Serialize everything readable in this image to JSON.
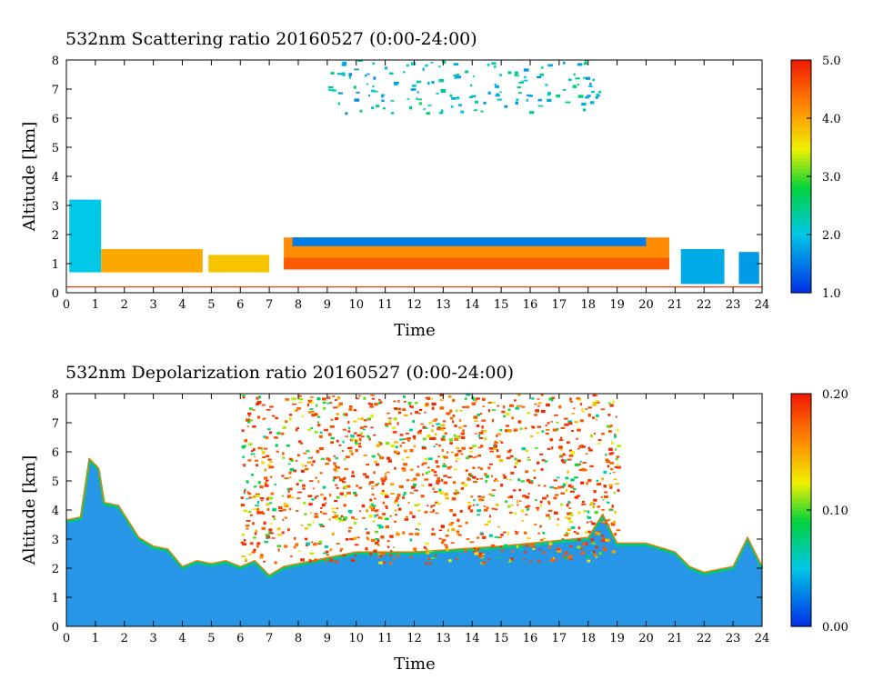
{
  "chart_data": [
    {
      "type": "heatmap",
      "title": "532nm Scattering ratio  20160527 (0:00-24:00)",
      "xlabel": "Time",
      "ylabel": "Altitude [km]",
      "xlim": [
        0,
        24
      ],
      "ylim": [
        0,
        8
      ],
      "x_ticks": [
        "0",
        "1",
        "2",
        "3",
        "4",
        "5",
        "6",
        "7",
        "8",
        "9",
        "10",
        "11",
        "12",
        "13",
        "14",
        "15",
        "16",
        "17",
        "18",
        "19",
        "20",
        "21",
        "22",
        "23",
        "24"
      ],
      "y_ticks": [
        "0",
        "1",
        "2",
        "3",
        "4",
        "5",
        "6",
        "7",
        "8"
      ],
      "colorbar": {
        "min": 1.0,
        "max": 5.0,
        "ticks": [
          "1.0",
          "2.0",
          "3.0",
          "4.0",
          "5.0"
        ]
      },
      "layers": [
        {
          "t0": 0.1,
          "t1": 1.2,
          "bottom": 0.7,
          "top": 3.2,
          "value": 2.0
        },
        {
          "t0": 1.2,
          "t1": 4.7,
          "bottom": 0.7,
          "top": 1.5,
          "value": 4.0
        },
        {
          "t0": 4.9,
          "t1": 7.0,
          "bottom": 0.7,
          "top": 1.3,
          "value": 3.8
        },
        {
          "t0": 7.5,
          "t1": 20.8,
          "bottom": 0.8,
          "top": 1.9,
          "value": 4.2
        },
        {
          "t0": 7.8,
          "t1": 20.0,
          "bottom": 1.6,
          "top": 1.9,
          "value": 1.5
        },
        {
          "t0": 21.2,
          "t1": 22.7,
          "bottom": 0.3,
          "top": 1.5,
          "value": 1.8
        },
        {
          "t0": 23.2,
          "t1": 23.9,
          "bottom": 0.3,
          "top": 1.4,
          "value": 1.7
        }
      ]
    },
    {
      "type": "heatmap",
      "title": "532nm Depolarization ratio  20160527 (0:00-24:00)",
      "xlabel": "Time",
      "ylabel": "Altitude [km]",
      "xlim": [
        0,
        24
      ],
      "ylim": [
        0,
        8
      ],
      "x_ticks": [
        "0",
        "1",
        "2",
        "3",
        "4",
        "5",
        "6",
        "7",
        "8",
        "9",
        "10",
        "11",
        "12",
        "13",
        "14",
        "15",
        "16",
        "17",
        "18",
        "19",
        "20",
        "21",
        "22",
        "23",
        "24"
      ],
      "y_ticks": [
        "0",
        "1",
        "2",
        "3",
        "4",
        "5",
        "6",
        "7",
        "8"
      ],
      "colorbar": {
        "min": 0.0,
        "max": 0.2,
        "ticks": [
          "0.00",
          "0.10",
          "0.20"
        ]
      },
      "boundary_layer_top_km": [
        [
          0,
          3.6
        ],
        [
          0.5,
          3.7
        ],
        [
          0.8,
          5.7
        ],
        [
          1.1,
          5.4
        ],
        [
          1.3,
          4.2
        ],
        [
          1.8,
          4.1
        ],
        [
          2.5,
          3.0
        ],
        [
          3.0,
          2.7
        ],
        [
          3.5,
          2.6
        ],
        [
          4.0,
          2.0
        ],
        [
          4.5,
          2.2
        ],
        [
          5.0,
          2.1
        ],
        [
          5.5,
          2.2
        ],
        [
          6.0,
          2.0
        ],
        [
          6.5,
          2.2
        ],
        [
          7.0,
          1.7
        ],
        [
          7.5,
          2.0
        ],
        [
          8.0,
          2.1
        ],
        [
          9.0,
          2.3
        ],
        [
          10.0,
          2.5
        ],
        [
          12.0,
          2.5
        ],
        [
          15.0,
          2.7
        ],
        [
          18.0,
          3.0
        ],
        [
          18.5,
          3.8
        ],
        [
          19.0,
          2.8
        ],
        [
          20.0,
          2.8
        ],
        [
          21.0,
          2.5
        ],
        [
          21.5,
          2.0
        ],
        [
          22.0,
          1.8
        ],
        [
          23.0,
          2.0
        ],
        [
          23.5,
          3.0
        ],
        [
          24.0,
          2.0
        ]
      ]
    }
  ]
}
